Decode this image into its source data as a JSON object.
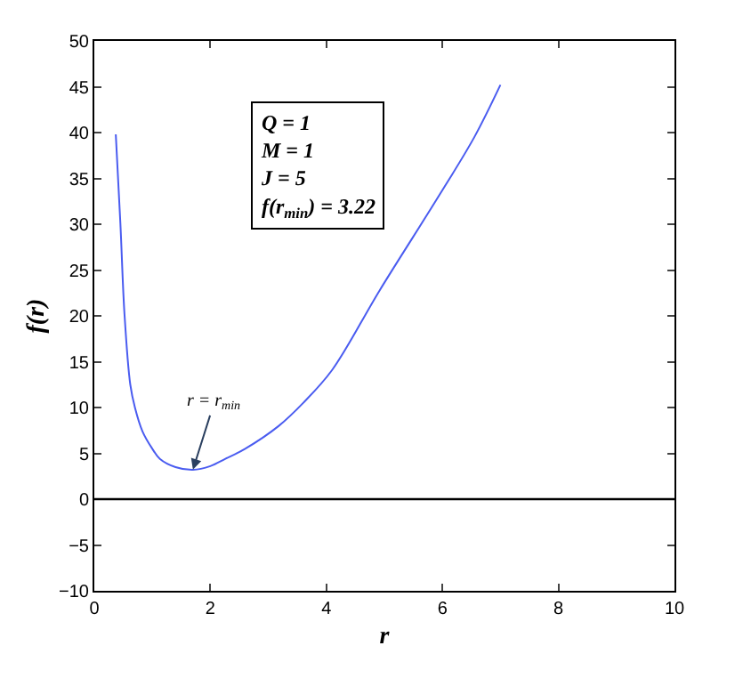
{
  "chart_data": {
    "type": "line",
    "xlabel": "r",
    "ylabel": "f(r)",
    "x": [
      0.37,
      0.45,
      0.52,
      0.62,
      0.7,
      0.83,
      1.0,
      1.13,
      1.4,
      1.7,
      2.0,
      2.26,
      2.6,
      3.18,
      3.6,
      4.1,
      4.92,
      5.94,
      6.55,
      7.0
    ],
    "series": [
      {
        "color": "#4a5cf0",
        "values": [
          39.8,
          30,
          20.2,
          12.5,
          10,
          7.4,
          5.5,
          4.4,
          3.5,
          3.2,
          3.6,
          4.4,
          5.5,
          8,
          10.5,
          14.1,
          22.8,
          33.1,
          39.5,
          45.2
        ]
      }
    ],
    "xlim": [
      0,
      10
    ],
    "ylim": [
      -10,
      50
    ],
    "xticks": [
      0,
      2,
      4,
      6,
      8,
      10
    ],
    "yticks": [
      {
        "value": -10,
        "label": "−10"
      },
      {
        "value": -5,
        "label": "−5"
      },
      0,
      5,
      10,
      15,
      20,
      25,
      30,
      35,
      40,
      45,
      50
    ],
    "ref_lines": [
      {
        "axis": "y",
        "value": 0,
        "color": "#000000",
        "line_style": "solid"
      }
    ],
    "annotations": [
      "Q = 1\nM = 1\nJ = 5\nf(r$_{min}$) = 3.22",
      {
        "text": "r = r$_{min}$",
        "x": 1.7,
        "y": 3.22
      }
    ],
    "marker": "none",
    "line_style": "solid"
  }
}
